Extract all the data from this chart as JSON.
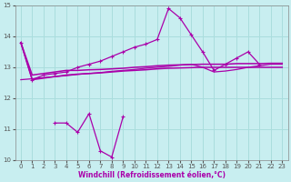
{
  "xlabel": "Windchill (Refroidissement éolien,°C)",
  "xlim": [
    -0.5,
    23.5
  ],
  "ylim": [
    10,
    15
  ],
  "yticks": [
    10,
    11,
    12,
    13,
    14,
    15
  ],
  "xticks": [
    0,
    1,
    2,
    3,
    4,
    5,
    6,
    7,
    8,
    9,
    10,
    11,
    12,
    13,
    14,
    15,
    16,
    17,
    18,
    19,
    20,
    21,
    22,
    23
  ],
  "bg_color": "#c8eef0",
  "grid_color": "#aadddd",
  "line_color": "#aa00aa",
  "line1_x": [
    0,
    1,
    2,
    3,
    4,
    5,
    6,
    7,
    8,
    9,
    10,
    11,
    12,
    13,
    14,
    15,
    16,
    17,
    18,
    19,
    20,
    21
  ],
  "line1_y": [
    13.8,
    12.6,
    12.75,
    12.8,
    12.85,
    13.0,
    13.1,
    13.2,
    13.35,
    13.5,
    13.65,
    13.75,
    13.9,
    14.9,
    14.6,
    14.05,
    13.5,
    12.9,
    13.1,
    13.3,
    13.5,
    13.1
  ],
  "line2_x": [
    0,
    1,
    2,
    3,
    4,
    5,
    6,
    7,
    8,
    9,
    10,
    11,
    12,
    13,
    14,
    15,
    16,
    17,
    18,
    19,
    20,
    21,
    22,
    23
  ],
  "line2_y": [
    13.8,
    12.75,
    12.8,
    12.85,
    12.9,
    12.9,
    12.92,
    12.93,
    12.95,
    12.97,
    13.0,
    13.02,
    13.05,
    13.07,
    13.08,
    13.09,
    13.1,
    13.1,
    13.1,
    13.12,
    13.12,
    13.12,
    13.13,
    13.13
  ],
  "line3_x": [
    0,
    1,
    2,
    3,
    4,
    5,
    6,
    7,
    8,
    9,
    10,
    11,
    12,
    13,
    14,
    15,
    16,
    17,
    18,
    19,
    20,
    21,
    22,
    23
  ],
  "line3_y": [
    13.8,
    12.6,
    12.65,
    12.7,
    12.75,
    12.78,
    12.8,
    12.82,
    12.85,
    12.88,
    12.9,
    12.92,
    12.95,
    12.97,
    12.98,
    12.99,
    13.0,
    13.0,
    13.0,
    13.0,
    13.0,
    13.0,
    13.0,
    13.0
  ],
  "line4_x": [
    0,
    1,
    2,
    3,
    4,
    5,
    6,
    7,
    8,
    9,
    10,
    11,
    12,
    13,
    14,
    15,
    16,
    17,
    18,
    19,
    20,
    21,
    22,
    23
  ],
  "line4_y": [
    12.6,
    12.63,
    12.67,
    12.7,
    12.73,
    12.77,
    12.8,
    12.83,
    12.87,
    12.9,
    12.93,
    12.97,
    13.0,
    13.03,
    13.07,
    13.1,
    13.0,
    12.85,
    12.88,
    12.93,
    13.0,
    13.05,
    13.1,
    13.1
  ],
  "line5_x": [
    3,
    4,
    5,
    6,
    7,
    8,
    9
  ],
  "line5_y": [
    11.2,
    11.2,
    10.9,
    11.5,
    10.3,
    10.1,
    11.4
  ]
}
